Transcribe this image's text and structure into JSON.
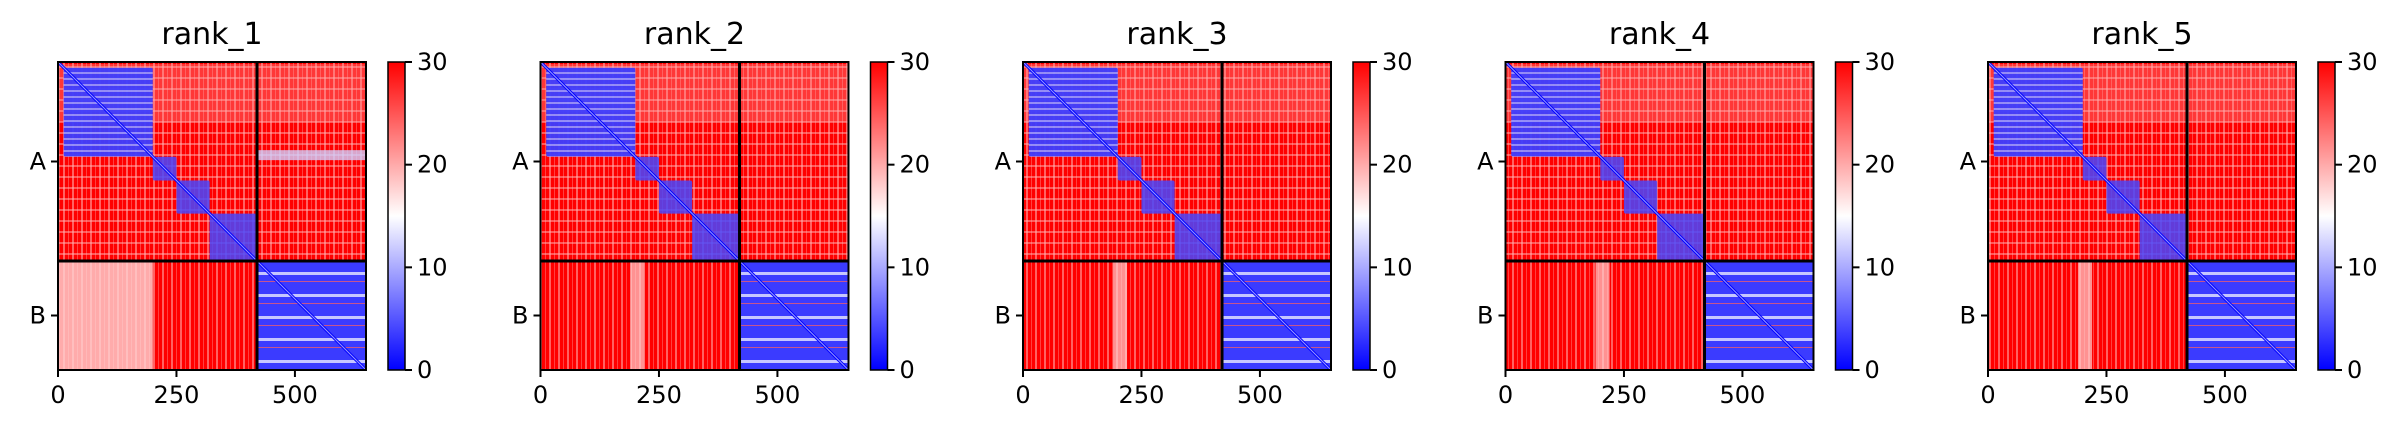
{
  "chart_data": {
    "type": "heatmap",
    "colormap": {
      "name": "bwr",
      "low": "#0000ff",
      "mid": "#ffffff",
      "high": "#ff0000"
    },
    "colorbar": {
      "min": 0,
      "max": 30,
      "ticks": [
        0,
        10,
        20,
        30
      ],
      "tick_labels": [
        "0",
        "10",
        "20",
        "30"
      ]
    },
    "matrix_length": 650,
    "x_ticks": [
      0,
      250,
      500
    ],
    "x_tick_labels": [
      "0",
      "250",
      "500"
    ],
    "chain_boundary": 420,
    "chains": [
      {
        "label": "A",
        "start": 0,
        "end": 420
      },
      {
        "label": "B",
        "start": 420,
        "end": 650
      }
    ],
    "panels": [
      {
        "title": "rank_1"
      },
      {
        "title": "rank_2"
      },
      {
        "title": "rank_3"
      },
      {
        "title": "rank_4"
      },
      {
        "title": "rank_5"
      }
    ]
  }
}
